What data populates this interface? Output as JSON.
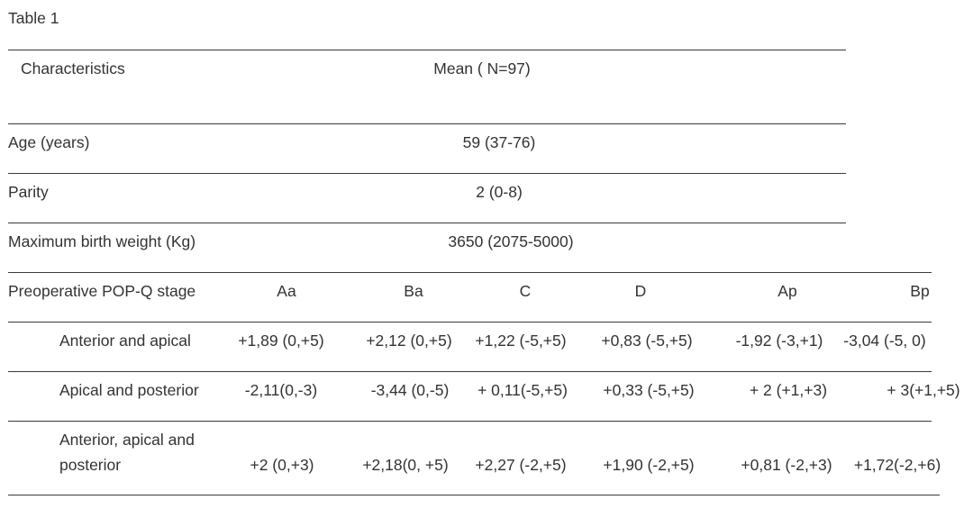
{
  "caption": "Table 1",
  "summary_table": {
    "header": {
      "characteristics": "Characteristics",
      "mean": "Mean ( N=97)"
    },
    "rows": [
      {
        "label": "Age (years)",
        "value": "59 (37-76)"
      },
      {
        "label": "Parity",
        "value": "2  (0-8)"
      },
      {
        "label": "Maximum birth weight (Kg)",
        "value": "3650 (2075-5000)"
      }
    ]
  },
  "popq_table": {
    "header": {
      "label": "Preoperative POP-Q stage",
      "columns": [
        "Aa",
        "Ba",
        "C",
        "D",
        "Ap",
        "Bp"
      ]
    },
    "rows": [
      {
        "label_lines": [
          "Anterior and apical"
        ],
        "values": [
          "+1,89 (0,+5)",
          "+2,12 (0,+5)",
          "+1,22 (-5,+5)",
          "+0,83 (-5,+5)",
          "-1,92 (-3,+1)",
          "-3,04 (-5, 0)"
        ]
      },
      {
        "label_lines": [
          "Apical and posterior"
        ],
        "values": [
          "-2,11(0,-3)",
          "-3,44 (0,-5)",
          "+ 0,11(-5,+5)",
          "+0,33 (-5,+5)",
          "+  2 (+1,+3)",
          "+ 3(+1,+5)"
        ]
      },
      {
        "label_lines": [
          "Anterior, apical and",
          "posterior"
        ],
        "values": [
          "+2 (0,+3)",
          "+2,18(0, +5)",
          "+2,27 (-2,+5)",
          "+1,90 (-2,+5)",
          "+0,81 (-2,+3)",
          "+1,72(-2,+6)"
        ]
      }
    ]
  }
}
